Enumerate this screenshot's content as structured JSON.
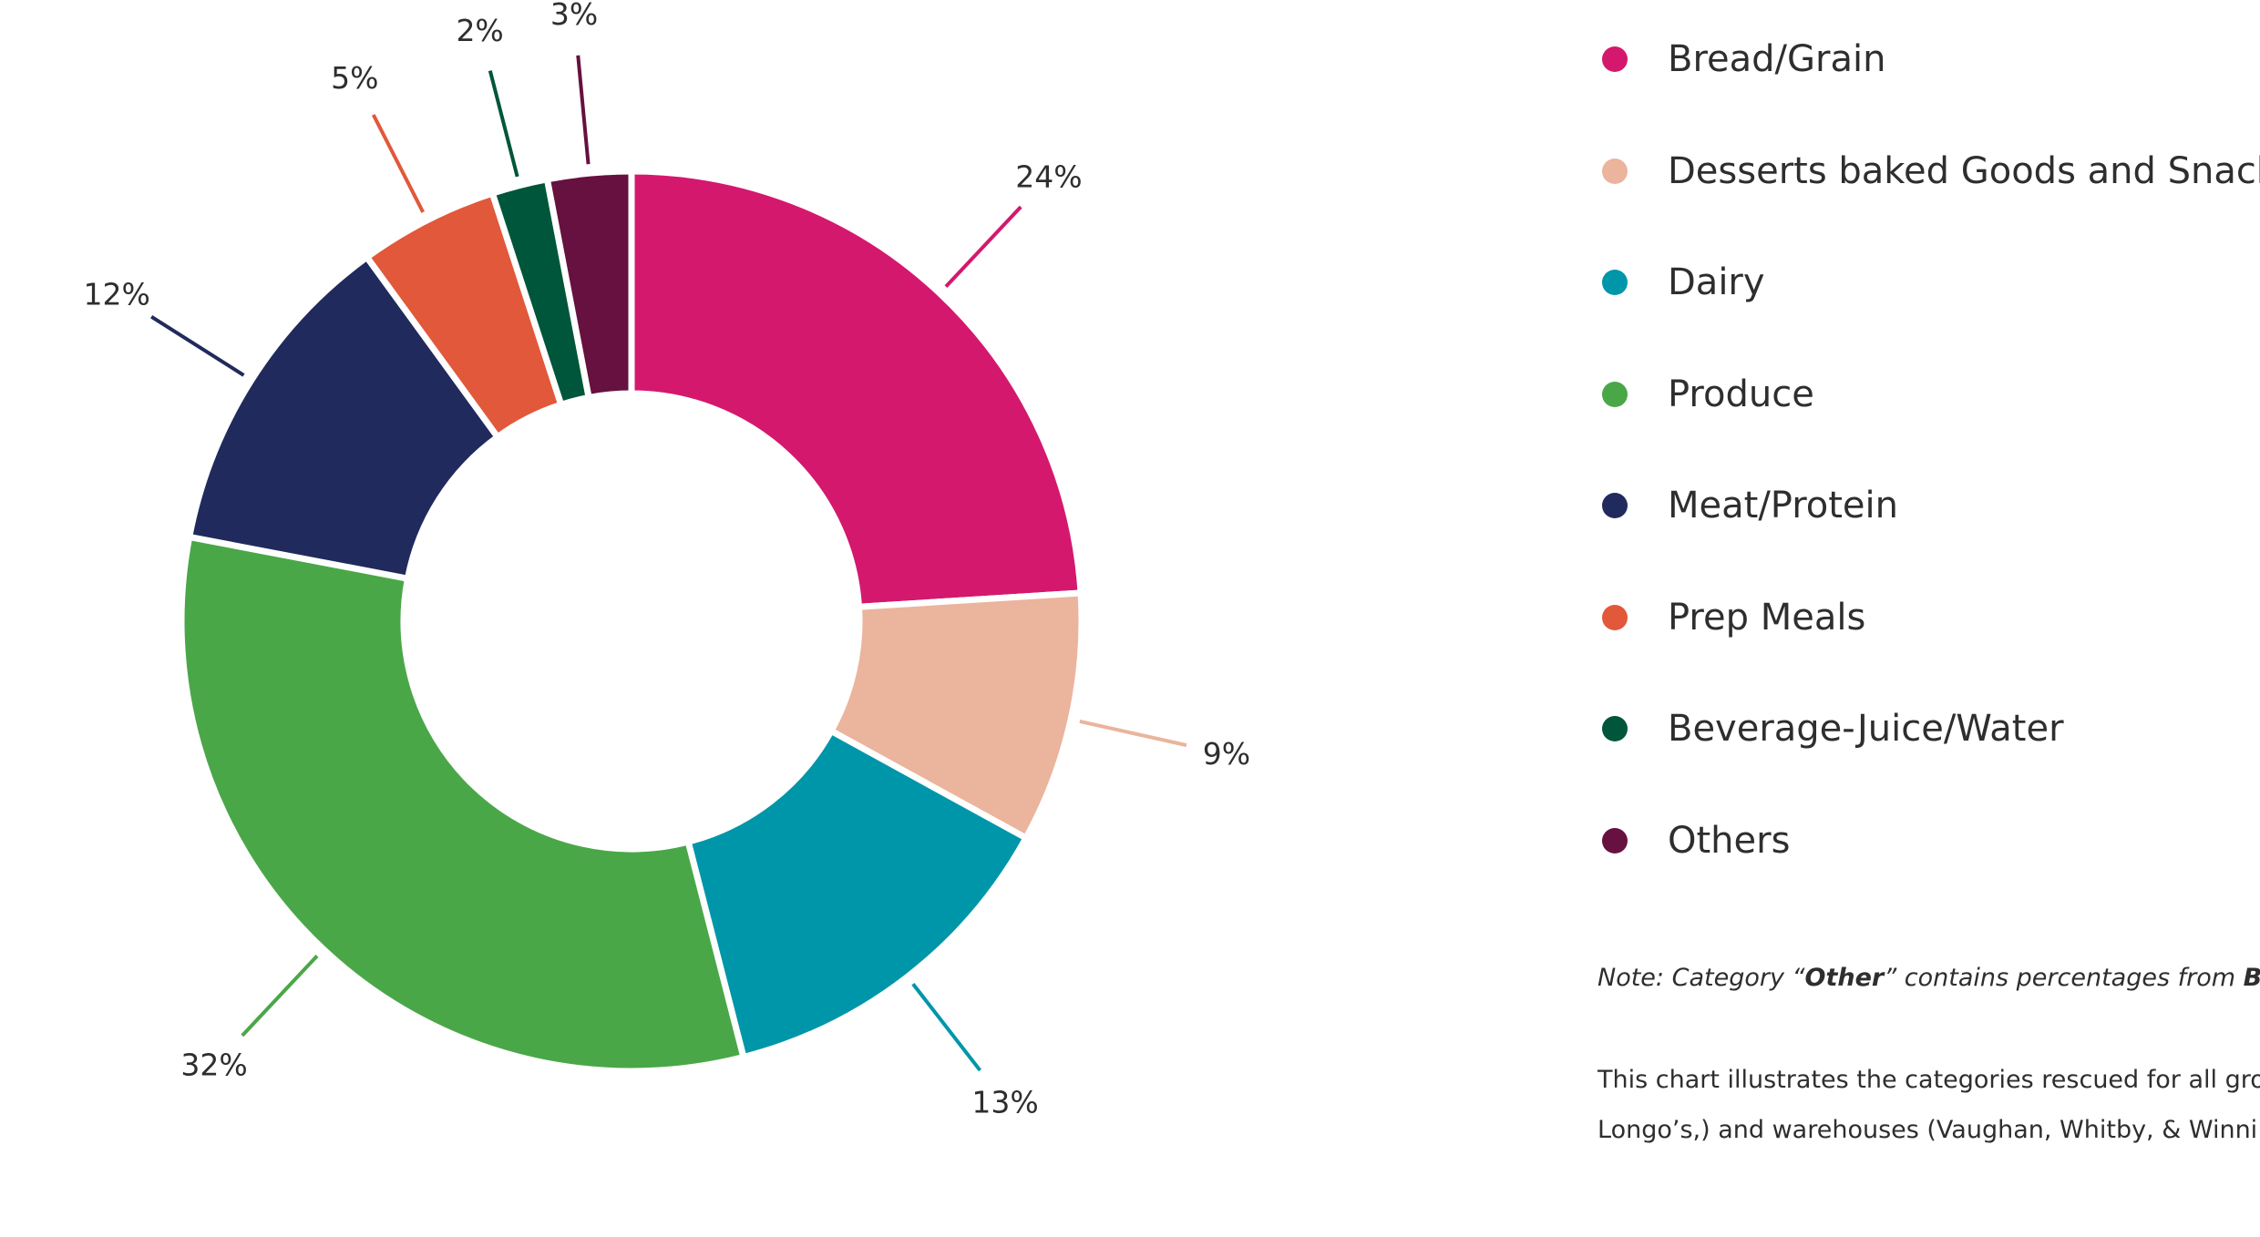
{
  "chart_data": {
    "type": "pie",
    "variant": "donut",
    "categories": [
      "Bread/Grain",
      "Desserts baked Goods and Snacks",
      "Dairy",
      "Produce",
      "Meat/Protein",
      "Prep Meals",
      "Beverage-Juice/Water",
      "Others"
    ],
    "values": [
      24,
      9,
      13,
      32,
      12,
      5,
      2,
      3
    ],
    "value_labels": [
      "24%",
      "9%",
      "13%",
      "32%",
      "12%",
      "5%",
      "2%",
      "3%"
    ],
    "colors": [
      "#d4186e",
      "#ebb49d",
      "#0096a9",
      "#4aa748",
      "#212a5c",
      "#e1583a",
      "#00563a",
      "#66113f"
    ],
    "legend_position": "right"
  },
  "legend": {
    "items": [
      {
        "label": "Bread/Grain",
        "color": "#d4186e"
      },
      {
        "label": "Desserts baked Goods and Snacks",
        "color": "#ebb49d"
      },
      {
        "label": "Dairy",
        "color": "#0096a9"
      },
      {
        "label": "Produce",
        "color": "#4aa748"
      },
      {
        "label": "Meat/Protein",
        "color": "#212a5c"
      },
      {
        "label": "Prep Meals",
        "color": "#e1583a"
      },
      {
        "label": "Beverage-Juice/Water",
        "color": "#00563a"
      },
      {
        "label": "Others",
        "color": "#66113f"
      }
    ]
  },
  "note": {
    "prefix": "Note: Category “",
    "bold": "Other",
    "suffix": "” contains percentages from ",
    "bold_tail": "Ba"
  },
  "description": {
    "line1": "This chart illustrates the categories rescued for all gro",
    "line2": "Longo’s,) and warehouses (Vaughan, Whitby, & Winni"
  }
}
